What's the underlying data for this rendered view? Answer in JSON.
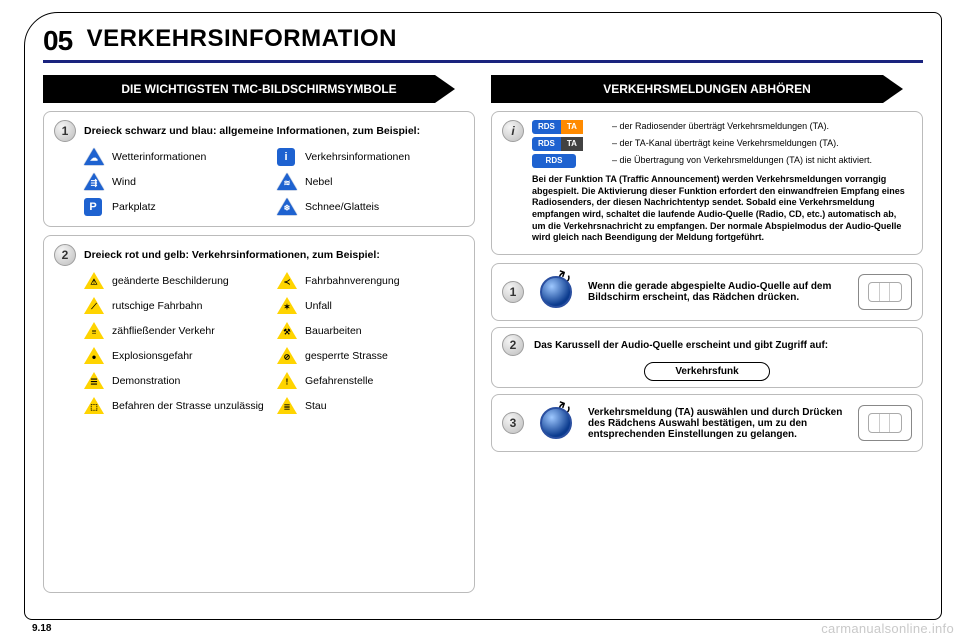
{
  "colors": {
    "accent_dark_blue": "#1a237e",
    "icon_blue": "#1e62d0",
    "icon_yellow": "#ffd400",
    "rds_orange": "#ff8a00",
    "rds_gray": "#424242",
    "border_gray": "#bbbbbb"
  },
  "header": {
    "section_number": "05",
    "title": "VERKEHRSINFORMATION"
  },
  "left": {
    "subheader": "DIE WICHTIGSTEN TMC-BILDSCHIRMSYMBOLE",
    "panel1": {
      "num": "1",
      "title": "Dreieck schwarz und blau: allgemeine Informationen, zum Beispiel:",
      "items": [
        {
          "glyph": "☁",
          "label": "Wetterinformationen"
        },
        {
          "glyph": "i",
          "label": "Verkehrsinformationen",
          "square": true
        },
        {
          "glyph": "⇶",
          "label": "Wind"
        },
        {
          "glyph": "≋",
          "label": "Nebel"
        },
        {
          "glyph": "P",
          "label": "Parkplatz",
          "square": true
        },
        {
          "glyph": "❄",
          "label": "Schnee/Glatteis"
        }
      ]
    },
    "panel2": {
      "num": "2",
      "title": "Dreieck rot und gelb: Verkehrsinformationen, zum Beispiel:",
      "items": [
        {
          "glyph": "⚠",
          "label": "geänderte Beschilderung"
        },
        {
          "glyph": "≺",
          "label": "Fahrbahnverengung"
        },
        {
          "glyph": "⟋",
          "label": "rutschige Fahrbahn"
        },
        {
          "glyph": "✶",
          "label": "Unfall"
        },
        {
          "glyph": "≡",
          "label": "zähfließender Verkehr"
        },
        {
          "glyph": "⚒",
          "label": "Bauarbeiten"
        },
        {
          "glyph": "●",
          "label": "Explosionsgefahr"
        },
        {
          "glyph": "⊘",
          "label": "gesperrte Strasse"
        },
        {
          "glyph": "☰",
          "label": "Demonstration"
        },
        {
          "glyph": "!",
          "label": "Gefahrenstelle"
        },
        {
          "glyph": "⬚",
          "label": "Befahren der Strasse unzulässig"
        },
        {
          "glyph": "≣",
          "label": "Stau"
        }
      ]
    }
  },
  "right": {
    "subheader": "VERKEHRSMELDUNGEN ABHÖREN",
    "rds": {
      "chip_left": "RDS",
      "chip_right": "TA",
      "line1": "der Radiosender überträgt Verkehrsmeldungen (TA).",
      "line2": "der TA-Kanal überträgt keine Verkehrsmeldungen (TA).",
      "line3": "die Übertragung von Verkehrsmeldungen (TA) ist nicht aktiviert."
    },
    "paragraph": "Bei der Funktion TA (Traffic Announcement) werden Verkehrsmeldungen vorrangig abgespielt. Die Aktivierung dieser Funktion erfordert den einwandfreien Empfang eines Radiosenders, der diesen Nachrichtentyp sendet. Sobald eine Verkehrsmeldung empfangen wird, schaltet die laufende Audio-Quelle (Radio, CD, etc.) automatisch ab, um die Verkehrsnachricht zu empfangen. Der normale Abspielmodus der Audio-Quelle wird gleich nach Beendigung der Meldung fortgeführt.",
    "step1": {
      "num": "1",
      "text": "Wenn die gerade abgespielte Audio-Quelle auf dem Bildschirm erscheint, das Rädchen drücken."
    },
    "step2": {
      "num": "2",
      "text": "Das Karussell der Audio-Quelle erscheint und gibt Zugriff auf:",
      "pill": "Verkehrsfunk"
    },
    "step3": {
      "num": "3",
      "text": "Verkehrsmeldung (TA) auswählen und durch Drücken des Rädchens Auswahl bestätigen, um zu den entsprechenden Einstellungen zu gelangen."
    }
  },
  "footer": {
    "page": "9.18",
    "watermark": "carmanualsonline.info"
  }
}
